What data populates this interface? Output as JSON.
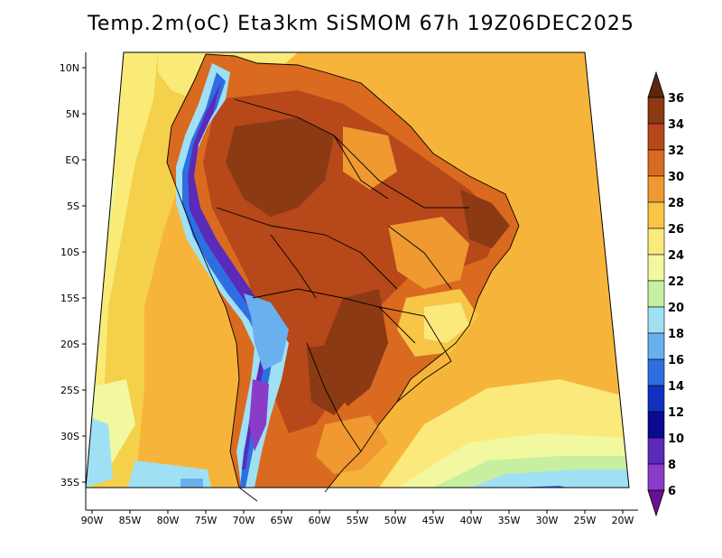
{
  "title": "Temp.2m(oC) Eta3km SiSMOM 67h 19Z06DEC2025",
  "lat_ticks": [
    "10N",
    "5N",
    "EQ",
    "5S",
    "10S",
    "15S",
    "20S",
    "25S",
    "30S",
    "35S"
  ],
  "lon_ticks": [
    "90W",
    "85W",
    "80W",
    "75W",
    "70W",
    "65W",
    "60W",
    "55W",
    "50W",
    "45W",
    "40W",
    "35W",
    "30W",
    "25W",
    "20W"
  ],
  "colorbar": {
    "labels": [
      "36",
      "34",
      "32",
      "30",
      "28",
      "26",
      "24",
      "22",
      "20",
      "18",
      "16",
      "14",
      "12",
      "10",
      "8",
      "6"
    ],
    "colors": [
      "#5c2610",
      "#8b3a14",
      "#b6481a",
      "#da6a20",
      "#ef9930",
      "#f7c646",
      "#fbe97c",
      "#f2f8a0",
      "#c6f0a0",
      "#9fe0f5",
      "#6ab0ee",
      "#2d6fe0",
      "#1030c0",
      "#0a0a90",
      "#5a2ab8",
      "#8a3cc8",
      "#6a1090"
    ],
    "top_cap_color": "#5c2610",
    "bottom_cap_color": "#6a1090"
  }
}
